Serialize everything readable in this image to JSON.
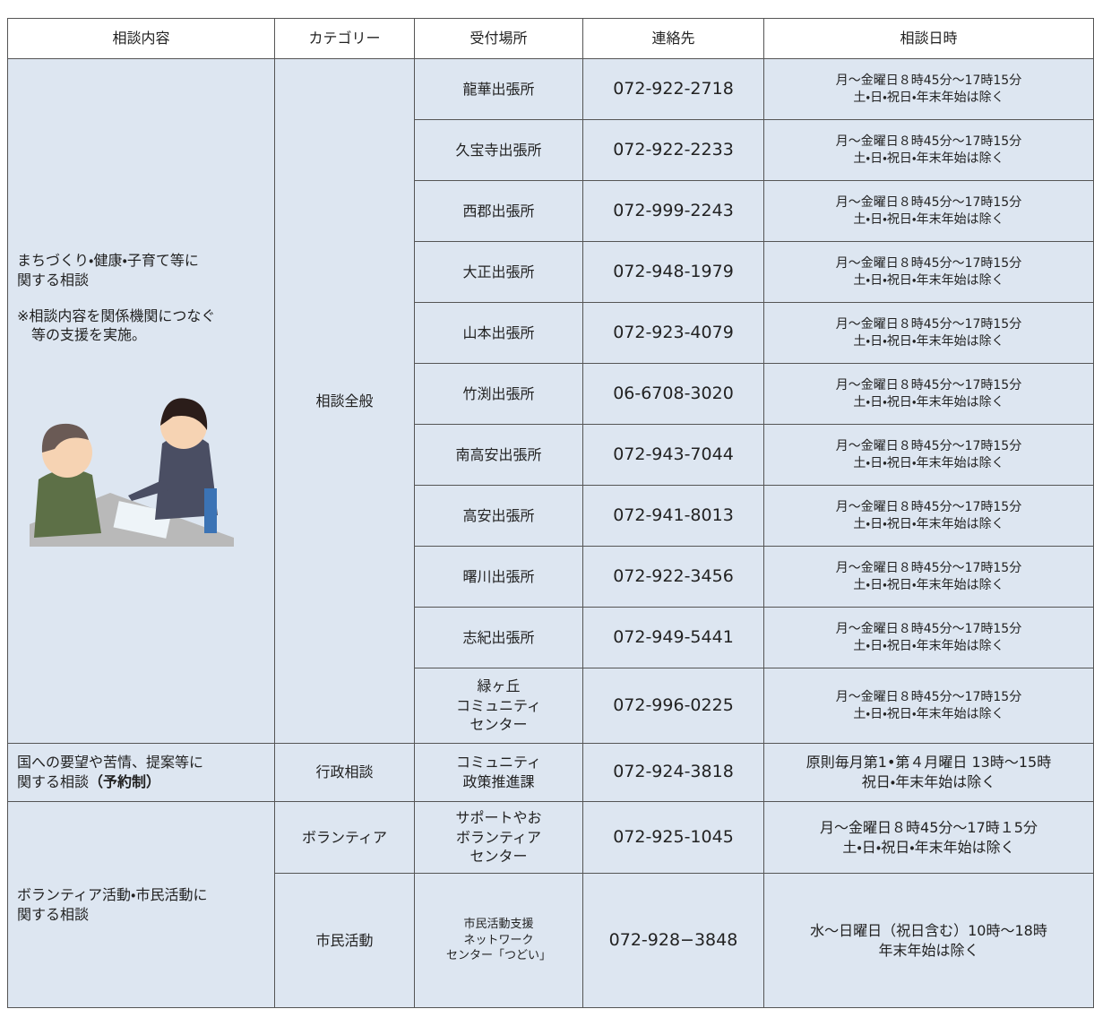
{
  "table": {
    "headers": [
      "相談内容",
      "カテゴリー",
      "受付場所",
      "連絡先",
      "相談日時"
    ],
    "sections": [
      {
        "topic": [
          "まちづくり・健康・子育て等に",
          "関する相談"
        ],
        "note": [
          "※相談内容を関係機関につなぐ",
          "等の支援を実施。"
        ],
        "categories": [
          {
            "name": "相談全般",
            "offices": [
              {
                "place": [
                  "龍華出張所"
                ],
                "phone": "072-922-2718",
                "hours": [
                  "月～金曜日８時45分～17時15分",
                  "土・日・祝日・年末年始は除く"
                ]
              },
              {
                "place": [
                  "久宝寺出張所"
                ],
                "phone": "072-922-2233",
                "hours": [
                  "月～金曜日８時45分～17時15分",
                  "土・日・祝日・年末年始は除く"
                ]
              },
              {
                "place": [
                  "西郡出張所"
                ],
                "phone": "072-999-2243",
                "hours": [
                  "月～金曜日８時45分～17時15分",
                  "土・日・祝日・年末年始は除く"
                ]
              },
              {
                "place": [
                  "大正出張所"
                ],
                "phone": "072-948-1979",
                "hours": [
                  "月～金曜日８時45分～17時15分",
                  "土・日・祝日・年末年始は除く"
                ]
              },
              {
                "place": [
                  "山本出張所"
                ],
                "phone": "072-923-4079",
                "hours": [
                  "月～金曜日８時45分～17時15分",
                  "土・日・祝日・年末年始は除く"
                ]
              },
              {
                "place": [
                  "竹渕出張所"
                ],
                "phone": "06-6708-3020",
                "hours": [
                  "月～金曜日８時45分～17時15分",
                  "土・日・祝日・年末年始は除く"
                ]
              },
              {
                "place": [
                  "南高安出張所"
                ],
                "phone": "072-943-7044",
                "hours": [
                  "月～金曜日８時45分～17時15分",
                  "土・日・祝日・年末年始は除く"
                ]
              },
              {
                "place": [
                  "高安出張所"
                ],
                "phone": "072-941-8013",
                "hours": [
                  "月～金曜日８時45分～17時15分",
                  "土・日・祝日・年末年始は除く"
                ]
              },
              {
                "place": [
                  "曙川出張所"
                ],
                "phone": "072-922-3456",
                "hours": [
                  "月～金曜日８時45分～17時15分",
                  "土・日・祝日・年末年始は除く"
                ]
              },
              {
                "place": [
                  "志紀出張所"
                ],
                "phone": "072-949-5441",
                "hours": [
                  "月～金曜日８時45分～17時15分",
                  "土・日・祝日・年末年始は除く"
                ]
              },
              {
                "place": [
                  "緑ヶ丘",
                  "コミュニティ",
                  "センター"
                ],
                "phone": "072-996-0225",
                "hours": [
                  "月～金曜日８時45分～17時15分",
                  "土・日・祝日・年末年始は除く"
                ]
              }
            ]
          }
        ]
      },
      {
        "topic": [
          "国への要望や苦情、提案等に",
          "関する相談"
        ],
        "topic_emphasis": "（予約制）",
        "categories": [
          {
            "name": "行政相談",
            "offices": [
              {
                "place": [
                  "コミュニティ",
                  "政策推進課"
                ],
                "phone": "072-924-3818",
                "hours": [
                  "原則毎月第1•第４月曜日 13時～15時",
                  "祝日・年末年始は除く"
                ]
              }
            ]
          }
        ]
      },
      {
        "topic": [
          "ボランティア活動・市民活動に",
          "関する相談"
        ],
        "categories": [
          {
            "name": "ボランティア",
            "offices": [
              {
                "place": [
                  "サポートやお",
                  "ボランティア",
                  "センター"
                ],
                "phone": "072-925-1045",
                "hours": [
                  "月～金曜日８時45分～17時１5分",
                  "土・日・祝日・年末年始は除く"
                ]
              }
            ]
          },
          {
            "name": "市民活動",
            "offices": [
              {
                "place": [
                  "市民活動支援",
                  "ネットワーク",
                  "センター「つどい」"
                ],
                "phone": "072-928−3848",
                "hours": [
                  "水～日曜日（祝日含む）10時～18時",
                  "年末年始は除く"
                ]
              }
            ]
          }
        ]
      }
    ]
  }
}
